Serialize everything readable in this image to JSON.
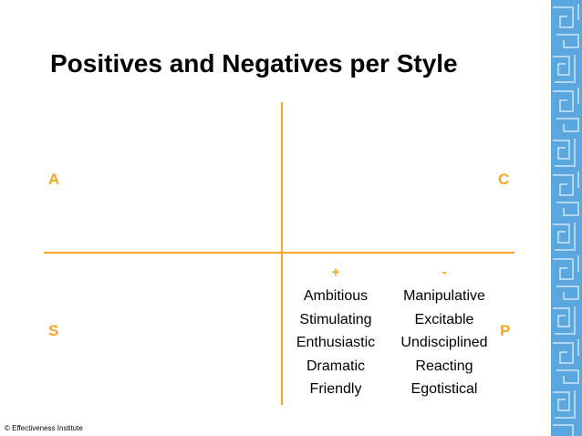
{
  "colors": {
    "accent": "#F5A623",
    "pattern_bg": "#5AA7E0",
    "pattern_line": "#CFE6F7"
  },
  "slide": {
    "title": "Positives and Negatives per Style",
    "quadrants": {
      "top_left": "A",
      "top_right": "C",
      "bottom_left": "S",
      "bottom_right": "P"
    },
    "positives": {
      "header": "+",
      "items": [
        "Ambitious",
        "Stimulating",
        "Enthusiastic",
        "Dramatic",
        "Friendly"
      ]
    },
    "negatives": {
      "header": "-",
      "items": [
        "Manipulative",
        "Excitable",
        "Undisciplined",
        "Reacting",
        "Egotistical"
      ]
    },
    "footer": "© Effectiveness Institute"
  }
}
